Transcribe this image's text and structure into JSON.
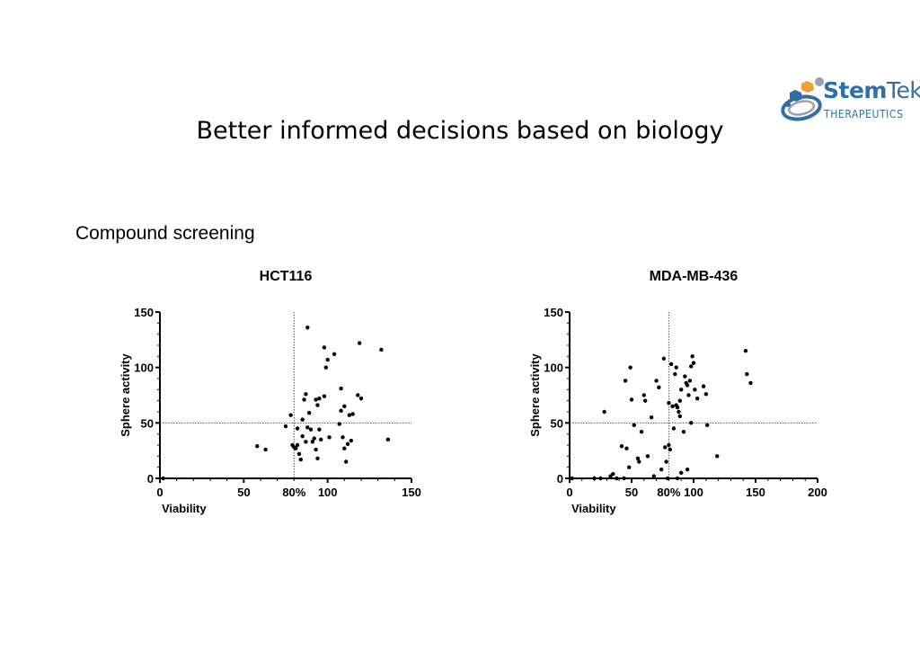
{
  "slide": {
    "title": "Better informed decisions based on biology",
    "section_heading": "Compound screening"
  },
  "logo": {
    "name_bold": "Stem",
    "name_light": "Tek",
    "tagline": "THERAPEUTICS",
    "colors": {
      "blue": "#2f6fa6",
      "orange": "#f0a030",
      "gray": "#9aa0a6"
    }
  },
  "chart_data": [
    {
      "type": "scatter",
      "title": "HCT116",
      "xlabel": "Viability",
      "ylabel": "Sphere activity",
      "xlim": [
        0,
        150
      ],
      "ylim": [
        0,
        150
      ],
      "x_ticks": [
        0,
        50,
        100,
        150
      ],
      "y_ticks": [
        0,
        50,
        100,
        150
      ],
      "reference_lines": {
        "x": 80,
        "y": 50,
        "x_label": "80%"
      },
      "grid": false,
      "points": [
        [
          2,
          0
        ],
        [
          58,
          29
        ],
        [
          63,
          26
        ],
        [
          75,
          47
        ],
        [
          78,
          57
        ],
        [
          79,
          30
        ],
        [
          80,
          28
        ],
        [
          81,
          27
        ],
        [
          82,
          30
        ],
        [
          82,
          45
        ],
        [
          83,
          22
        ],
        [
          84,
          17
        ],
        [
          85,
          38
        ],
        [
          85,
          53
        ],
        [
          86,
          71
        ],
        [
          87,
          33
        ],
        [
          87,
          76
        ],
        [
          88,
          136
        ],
        [
          88,
          46
        ],
        [
          89,
          59
        ],
        [
          90,
          44
        ],
        [
          91,
          33
        ],
        [
          92,
          36
        ],
        [
          93,
          71
        ],
        [
          93,
          26
        ],
        [
          94,
          66
        ],
        [
          94,
          18
        ],
        [
          95,
          44
        ],
        [
          95,
          72
        ],
        [
          96,
          35
        ],
        [
          98,
          74
        ],
        [
          98,
          118
        ],
        [
          99,
          100
        ],
        [
          100,
          107
        ],
        [
          101,
          37
        ],
        [
          104,
          112
        ],
        [
          107,
          49
        ],
        [
          108,
          61
        ],
        [
          108,
          81
        ],
        [
          109,
          37
        ],
        [
          110,
          65
        ],
        [
          110,
          27
        ],
        [
          111,
          15
        ],
        [
          112,
          31
        ],
        [
          113,
          57
        ],
        [
          114,
          34
        ],
        [
          115,
          58
        ],
        [
          118,
          75
        ],
        [
          119,
          122
        ],
        [
          120,
          72
        ],
        [
          132,
          116
        ],
        [
          136,
          35
        ]
      ]
    },
    {
      "type": "scatter",
      "title": "MDA-MB-436",
      "xlabel": "Viability",
      "ylabel": "Sphere activity",
      "xlim": [
        0,
        200
      ],
      "ylim": [
        0,
        150
      ],
      "x_ticks": [
        0,
        50,
        100,
        150,
        200
      ],
      "y_ticks": [
        0,
        50,
        100,
        150
      ],
      "reference_lines": {
        "x": 80,
        "y": 50,
        "x_label": "80%"
      },
      "grid": false,
      "points": [
        [
          2,
          0
        ],
        [
          20,
          0
        ],
        [
          25,
          0
        ],
        [
          28,
          60
        ],
        [
          33,
          2
        ],
        [
          35,
          4
        ],
        [
          38,
          0
        ],
        [
          42,
          29
        ],
        [
          44,
          0
        ],
        [
          45,
          88
        ],
        [
          46,
          27
        ],
        [
          48,
          10
        ],
        [
          49,
          100
        ],
        [
          50,
          71
        ],
        [
          52,
          48
        ],
        [
          55,
          18
        ],
        [
          56,
          15
        ],
        [
          58,
          42
        ],
        [
          60,
          75
        ],
        [
          61,
          70
        ],
        [
          63,
          20
        ],
        [
          66,
          55
        ],
        [
          68,
          2
        ],
        [
          70,
          88
        ],
        [
          72,
          82
        ],
        [
          74,
          8
        ],
        [
          76,
          108
        ],
        [
          77,
          28
        ],
        [
          78,
          15
        ],
        [
          79,
          0
        ],
        [
          80,
          30
        ],
        [
          80,
          68
        ],
        [
          81,
          26
        ],
        [
          82,
          103
        ],
        [
          83,
          65
        ],
        [
          84,
          45
        ],
        [
          85,
          94
        ],
        [
          86,
          66
        ],
        [
          86,
          100
        ],
        [
          87,
          64
        ],
        [
          87,
          0
        ],
        [
          88,
          60
        ],
        [
          89,
          56
        ],
        [
          89,
          70
        ],
        [
          90,
          80
        ],
        [
          90,
          5
        ],
        [
          92,
          42
        ],
        [
          93,
          92
        ],
        [
          94,
          86
        ],
        [
          95,
          84
        ],
        [
          95,
          8
        ],
        [
          96,
          75
        ],
        [
          97,
          88
        ],
        [
          98,
          50
        ],
        [
          98,
          101
        ],
        [
          99,
          110
        ],
        [
          100,
          104
        ],
        [
          101,
          80
        ],
        [
          103,
          72
        ],
        [
          108,
          83
        ],
        [
          110,
          76
        ],
        [
          111,
          48
        ],
        [
          119,
          20
        ],
        [
          142,
          115
        ],
        [
          143,
          94
        ],
        [
          146,
          86
        ]
      ]
    }
  ]
}
